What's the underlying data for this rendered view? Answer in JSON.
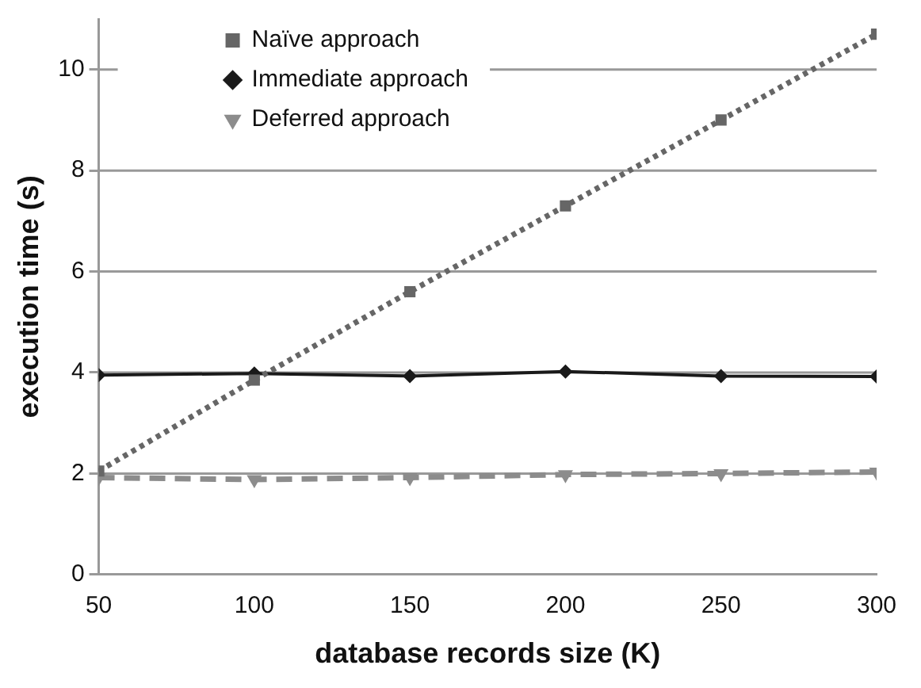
{
  "chart_data": {
    "type": "line",
    "xlabel": "database records size (K)",
    "ylabel": "execution time (s)",
    "x": [
      50,
      100,
      150,
      200,
      250,
      300
    ],
    "xlim": [
      50,
      300
    ],
    "xticks": [
      50,
      100,
      150,
      200,
      250,
      300
    ],
    "ylim": [
      0,
      11
    ],
    "yticks": [
      0,
      2,
      4,
      6,
      8,
      10
    ],
    "grid": "y",
    "legend": "top left",
    "series": [
      {
        "name": "Naïve approach",
        "color": "#666666",
        "marker": "square",
        "line_style": "dotted",
        "values": [
          2.05,
          3.85,
          5.6,
          7.3,
          9.0,
          10.7
        ]
      },
      {
        "name": "Immediate approach",
        "color": "#1a1a1a",
        "marker": "diamond",
        "line_style": "solid",
        "values": [
          3.95,
          3.98,
          3.93,
          4.02,
          3.93,
          3.92
        ]
      },
      {
        "name": "Deferred approach",
        "color": "#8c8c8c",
        "marker": "triangle",
        "line_style": "dashed",
        "values": [
          1.92,
          1.88,
          1.92,
          1.98,
          2.0,
          2.03
        ]
      }
    ]
  }
}
